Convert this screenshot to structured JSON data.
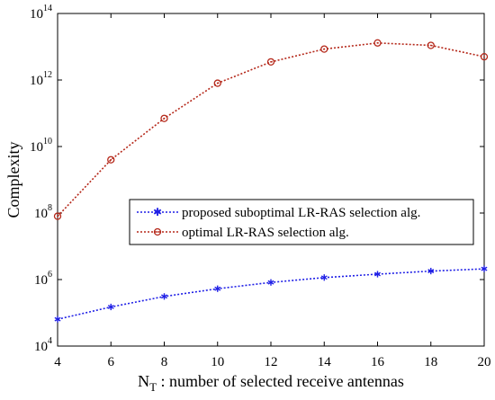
{
  "chart_data": {
    "type": "line",
    "xlabel_main": "N",
    "xlabel_sub": "T",
    "xlabel_rest": " : number of selected receive antennas",
    "ylabel": "Complexity",
    "xlim": [
      4,
      20
    ],
    "ylim_log10": [
      4,
      14
    ],
    "log_scale_y": true,
    "grid": false,
    "legend_position": "center-right",
    "x": [
      4,
      6,
      8,
      10,
      12,
      14,
      16,
      18,
      20
    ],
    "x_ticks": [
      4,
      6,
      8,
      10,
      12,
      14,
      16,
      18,
      20
    ],
    "y_tick_exponents": [
      4,
      6,
      8,
      10,
      12,
      14
    ],
    "y_tick_base": "10",
    "series": [
      {
        "name": "proposed suboptimal LR-RAS selection alg.",
        "color": "#1f1fe6",
        "marker": "asterisk",
        "values": [
          64000,
          150000,
          310000,
          530000,
          820000,
          1150000,
          1450000,
          1800000,
          2100000
        ]
      },
      {
        "name": "optimal LR-RAS selection alg.",
        "color": "#b5281a",
        "marker": "circle",
        "values": [
          80000000,
          4000000000,
          70000000000,
          800000000000,
          3500000000000,
          8500000000000,
          13000000000000,
          11000000000000,
          5000000000000
        ]
      }
    ]
  }
}
